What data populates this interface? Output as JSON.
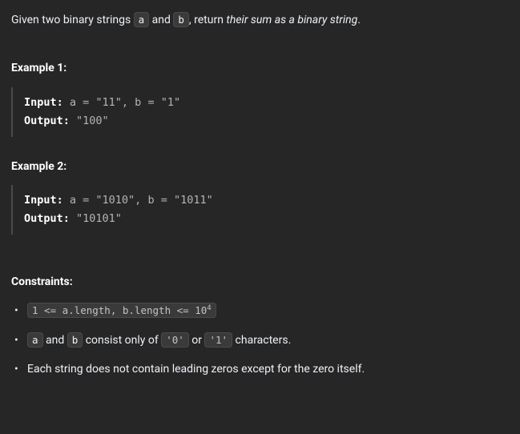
{
  "colors": {
    "background": "#262626",
    "text": "#eff1f6",
    "heading": "#ffffff",
    "code_bg": "#3a3a3a",
    "code_border": "#4a4a4a",
    "code_muted": "#b4b4b4",
    "block_border": "#4a4a4a"
  },
  "intro": {
    "prefix": "Given two binary strings ",
    "code_a": "a",
    "mid1": " and ",
    "code_b": "b",
    "mid2": ", return ",
    "italic": "their sum as a binary string",
    "suffix": "."
  },
  "examples": [
    {
      "heading": "Example 1:",
      "input_label": "Input:",
      "input_value": " a = \"11\", b = \"1\"",
      "output_label": "Output:",
      "output_value": " \"100\""
    },
    {
      "heading": "Example 2:",
      "input_label": "Input:",
      "input_value": " a = \"1010\", b = \"1011\"",
      "output_label": "Output:",
      "output_value": " \"10101\""
    }
  ],
  "constraints": {
    "heading": "Constraints:",
    "item1": {
      "code_prefix": "1 <= a.length, b.length <= 10",
      "code_exp": "4"
    },
    "item2": {
      "code_a": "a",
      "t1": " and ",
      "code_b": "b",
      "t2": " consist only of ",
      "code_zero": "'0'",
      "t3": " or ",
      "code_one": "'1'",
      "t4": " characters."
    },
    "item3": "Each string does not contain leading zeros except for the zero itself."
  }
}
